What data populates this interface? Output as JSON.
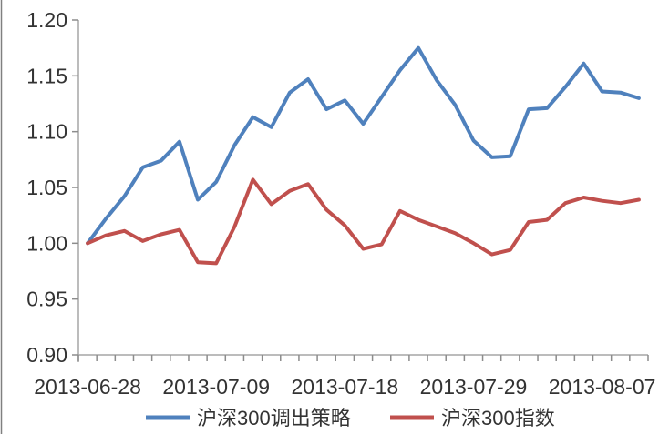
{
  "chart_data": {
    "type": "line",
    "title": "",
    "xlabel": "",
    "ylabel": "",
    "grid": false,
    "legend_position": "bottom",
    "ylim": [
      0.9,
      1.2
    ],
    "yticks": [
      0.9,
      0.95,
      1.0,
      1.05,
      1.1,
      1.15,
      1.2
    ],
    "ytick_labels": [
      "0.90",
      "0.95",
      "1.00",
      "1.05",
      "1.10",
      "1.15",
      "1.20"
    ],
    "categories": [
      "2013-06-28",
      "2013-07-01",
      "2013-07-02",
      "2013-07-03",
      "2013-07-04",
      "2013-07-05",
      "2013-07-08",
      "2013-07-09",
      "2013-07-10",
      "2013-07-11",
      "2013-07-12",
      "2013-07-15",
      "2013-07-16",
      "2013-07-17",
      "2013-07-18",
      "2013-07-19",
      "2013-07-22",
      "2013-07-23",
      "2013-07-24",
      "2013-07-25",
      "2013-07-26",
      "2013-07-29",
      "2013-07-30",
      "2013-07-31",
      "2013-08-01",
      "2013-08-02",
      "2013-08-05",
      "2013-08-06",
      "2013-08-07",
      "2013-08-08",
      "2013-08-09"
    ],
    "xtick_label_indices": [
      0,
      7,
      14,
      21,
      28
    ],
    "xtick_labels": [
      "2013-06-28",
      "2013-07-09",
      "2013-07-18",
      "2013-07-29",
      "2013-08-07"
    ],
    "series": [
      {
        "name": "沪深300调出策略",
        "color": "#4f81bd",
        "values": [
          1.0,
          1.022,
          1.042,
          1.068,
          1.074,
          1.091,
          1.039,
          1.055,
          1.088,
          1.113,
          1.104,
          1.135,
          1.147,
          1.12,
          1.128,
          1.107,
          1.131,
          1.155,
          1.175,
          1.146,
          1.124,
          1.092,
          1.077,
          1.078,
          1.12,
          1.121,
          1.14,
          1.161,
          1.136,
          1.135,
          1.13
        ]
      },
      {
        "name": "沪深300指数",
        "color": "#c0504d",
        "values": [
          1.0,
          1.007,
          1.011,
          1.002,
          1.008,
          1.012,
          0.983,
          0.982,
          1.015,
          1.057,
          1.035,
          1.047,
          1.053,
          1.03,
          1.016,
          0.995,
          0.999,
          1.029,
          1.021,
          1.015,
          1.009,
          1.0,
          0.99,
          0.994,
          1.019,
          1.021,
          1.036,
          1.041,
          1.038,
          1.036,
          1.039
        ]
      }
    ]
  },
  "style_colors": {
    "axis": "#a6a6a6",
    "tick": "#8c8c8c",
    "label_text": "#333333",
    "left_border": "#808080"
  }
}
